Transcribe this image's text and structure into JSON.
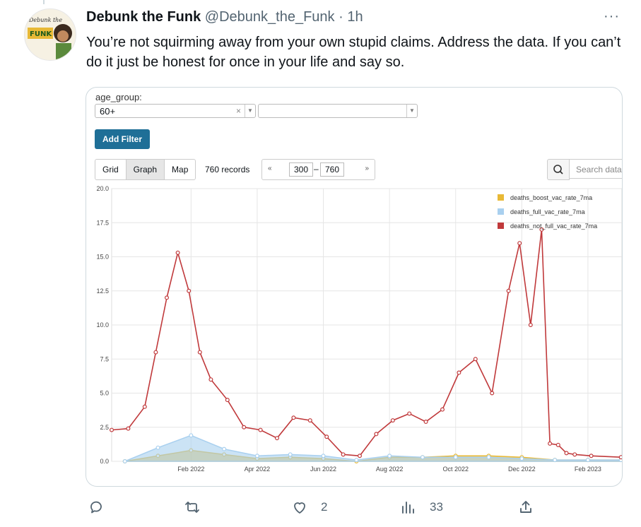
{
  "tweet": {
    "name": "Debunk the Funk",
    "handle": "@Debunk_the_Funk",
    "separator": "·",
    "time": "1h",
    "more": "···",
    "text": "You’re not squirming away from your own stupid claims. Address the data. If you can’t do it just be honest for once in your life and say so.",
    "avatar_text_top": "Debunk the",
    "avatar_text_bottom": "FUNK"
  },
  "embedded_app": {
    "filter_label": "age_group:",
    "filter_value": "60+",
    "filter_clear": "×",
    "add_filter": "Add Filter",
    "tabs": [
      {
        "label": "Grid",
        "active": false
      },
      {
        "label": "Graph",
        "active": true
      },
      {
        "label": "Map",
        "active": false
      }
    ],
    "records": "760 records",
    "pager_prev": "«",
    "pager_from": "300",
    "pager_dash": "–",
    "pager_to": "760",
    "pager_next": "»",
    "search_placeholder": "Search data"
  },
  "chart_data": {
    "type": "line",
    "ylim": [
      0,
      20
    ],
    "yticks": [
      "0.0",
      "2.5",
      "5.0",
      "7.5",
      "10.0",
      "12.5",
      "15.0",
      "17.5",
      "20.0"
    ],
    "xticks": [
      "Feb 2022",
      "Apr 2022",
      "Jun 2022",
      "Aug 2022",
      "Oct 2022",
      "Dec 2022",
      "Feb 2023"
    ],
    "grid": true,
    "legend_position": "top-right",
    "series": [
      {
        "name": "deaths_boost_vac_rate_7ma",
        "color": "#e8b936",
        "x": [
          "Dec 2021",
          "Jan 2022",
          "Feb 2022",
          "Mar 2022",
          "Apr 2022",
          "May 2022",
          "Jun 2022",
          "Jul 2022",
          "Aug 2022",
          "Sep 2022",
          "Oct 2022",
          "Nov 2022",
          "Dec 2022",
          "Jan 2023",
          "Feb 2023",
          "Mar 2023"
        ],
        "values": [
          0.0,
          0.4,
          0.8,
          0.5,
          0.2,
          0.3,
          0.2,
          0.0,
          0.3,
          0.3,
          0.4,
          0.4,
          0.3,
          0.1,
          0.1,
          0.1
        ]
      },
      {
        "name": "deaths_full_vac_rate_7ma",
        "color": "#a9d0ef",
        "x": [
          "Dec 2021",
          "Jan 2022",
          "Feb 2022",
          "Mar 2022",
          "Apr 2022",
          "May 2022",
          "Jun 2022",
          "Jul 2022",
          "Aug 2022",
          "Sep 2022",
          "Oct 2022",
          "Nov 2022",
          "Dec 2022",
          "Jan 2023",
          "Feb 2023",
          "Mar 2023"
        ],
        "values": [
          0.0,
          1.0,
          1.9,
          0.9,
          0.4,
          0.5,
          0.4,
          0.1,
          0.4,
          0.3,
          0.3,
          0.3,
          0.2,
          0.1,
          0.1,
          0.1
        ]
      },
      {
        "name": "deaths_not_full_vac_rate_7ma",
        "color": "#c0393b",
        "x": [
          "Dec 2021",
          "Dec 2021",
          "Jan 2022",
          "Jan 2022",
          "Jan 2022",
          "Feb 2022",
          "Feb 2022",
          "Feb 2022",
          "Mar 2022",
          "Mar 2022",
          "Apr 2022",
          "Apr 2022",
          "May 2022",
          "May 2022",
          "Jun 2022",
          "Jun 2022",
          "Jul 2022",
          "Jul 2022",
          "Aug 2022",
          "Aug 2022",
          "Sep 2022",
          "Sep 2022",
          "Oct 2022",
          "Oct 2022",
          "Nov 2022",
          "Nov 2022",
          "Dec 2022",
          "Dec 2022",
          "Dec 2022",
          "Jan 2023",
          "Jan 2023",
          "Jan 2023",
          "Jan 2023",
          "Feb 2023",
          "Feb 2023",
          "Mar 2023"
        ],
        "values": [
          2.3,
          2.4,
          4.0,
          8.0,
          12.0,
          15.3,
          12.5,
          8.0,
          6.0,
          4.5,
          2.5,
          2.3,
          1.7,
          3.2,
          3.0,
          1.8,
          0.5,
          0.4,
          2.0,
          3.0,
          3.5,
          2.9,
          3.8,
          6.5,
          7.5,
          5.0,
          12.5,
          16.0,
          10.0,
          17.0,
          1.3,
          1.2,
          0.6,
          0.5,
          0.4,
          0.3
        ]
      }
    ]
  },
  "actions": {
    "reply": "",
    "retweet": "",
    "like_count": "2",
    "views_count": "33",
    "share": ""
  }
}
